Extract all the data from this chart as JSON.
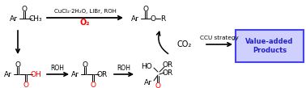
{
  "fig_width": 3.78,
  "fig_height": 1.09,
  "dpi": 100,
  "bg_color": "#ffffff",
  "top_reaction_label": "CuCl₂·2H₂O, LiBr, ROH",
  "top_reaction_O2": "O₂",
  "ccu_label": "CCU strategy",
  "box_text": "Value-added\nProducts",
  "box_edgecolor": "#4444ee",
  "box_facecolor": "#d0d0ff",
  "box_textcolor": "#2222cc",
  "CO2_color": "black",
  "O2_color": "red",
  "red_color": "red",
  "black_color": "black"
}
